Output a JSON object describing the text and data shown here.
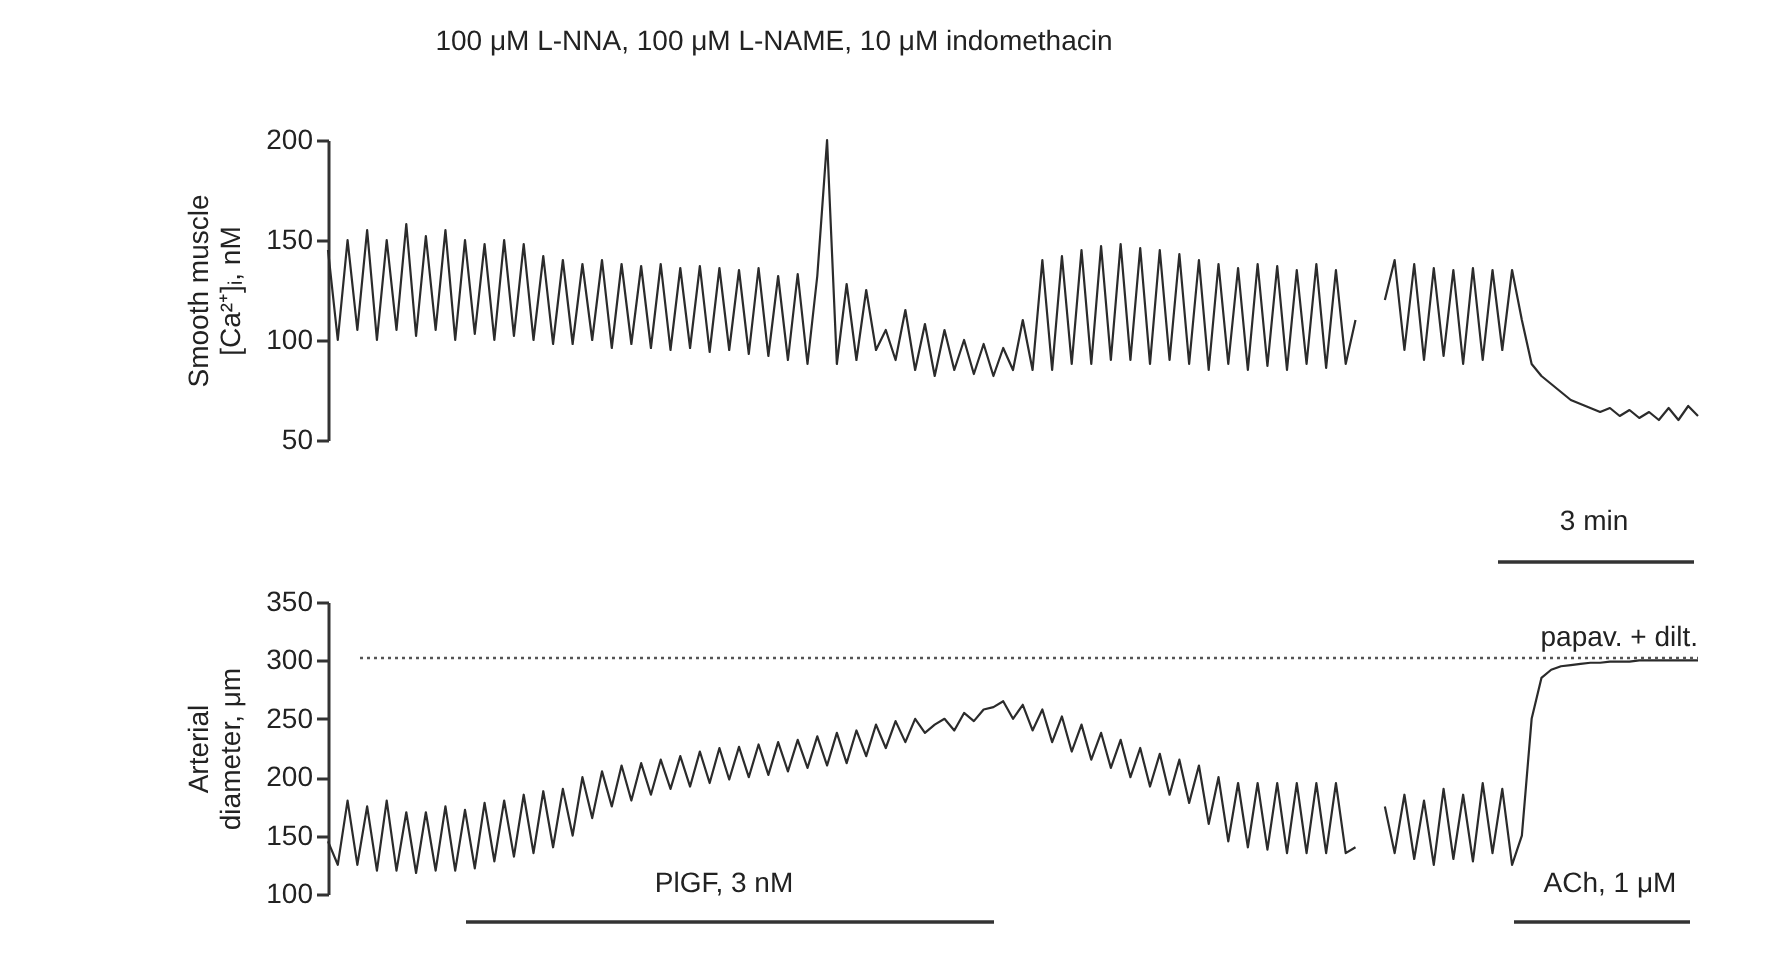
{
  "chart_data": [
    {
      "type": "line",
      "ylabel": "Smooth muscle\n[Ca²⁺]ᵢ, nM",
      "ylim": [
        50,
        200
      ],
      "yticks": [
        50,
        100,
        150,
        200
      ],
      "tick_labels": "y",
      "grid": false,
      "annotations": [
        "100 μM L-NNA, 100 μM L-NAME, 10 μM indomethacin",
        "3 min"
      ],
      "categories": [
        null,
        null,
        null,
        null,
        null,
        null,
        null,
        null,
        null,
        null,
        null,
        null,
        null,
        null,
        null,
        null,
        null,
        null,
        null,
        null,
        null,
        null,
        null,
        null,
        null,
        null,
        null,
        null,
        null,
        null,
        null,
        null,
        null,
        null,
        null,
        null,
        null,
        null,
        null,
        null,
        null,
        null,
        null,
        null,
        null,
        null,
        null,
        null,
        null,
        null,
        null,
        null,
        null,
        null,
        null,
        null,
        null,
        null,
        null,
        null,
        null,
        null,
        null,
        null,
        null,
        null,
        null,
        null,
        null,
        null,
        null,
        null,
        null,
        null,
        null,
        null,
        null,
        null,
        null,
        null,
        null,
        null,
        null,
        null,
        null,
        null,
        null,
        null,
        null,
        null,
        null,
        null,
        null,
        null,
        null,
        null,
        null,
        null,
        null,
        null,
        null,
        null,
        null,
        null,
        null,
        null,
        null,
        null,
        null,
        null,
        null,
        null,
        null,
        null,
        null,
        null,
        null,
        null,
        null,
        null,
        null,
        null,
        null,
        null,
        null,
        null,
        null,
        null,
        null,
        null,
        null,
        null,
        null,
        null,
        null,
        null,
        null,
        null,
        null,
        null,
        null
      ],
      "series": [
        {
          "color": "#2b2b2b",
          "values": [
            145,
            100,
            150,
            105,
            155,
            100,
            150,
            105,
            158,
            102,
            152,
            105,
            155,
            100,
            150,
            103,
            148,
            100,
            150,
            102,
            148,
            100,
            142,
            98,
            140,
            98,
            138,
            100,
            140,
            96,
            138,
            98,
            137,
            96,
            138,
            95,
            136,
            96,
            137,
            94,
            136,
            95,
            135,
            93,
            136,
            92,
            132,
            90,
            133,
            88,
            132,
            200,
            88,
            128,
            90,
            125,
            95,
            105,
            90,
            115,
            85,
            108,
            82,
            105,
            85,
            100,
            83,
            98,
            82,
            96,
            85,
            110,
            85,
            140,
            85,
            142,
            88,
            145,
            88,
            147,
            90,
            148,
            90,
            146,
            88,
            145,
            90,
            143,
            88,
            140,
            85,
            138,
            88,
            136,
            85,
            138,
            87,
            137,
            85,
            135,
            88,
            138,
            86,
            135,
            88,
            110,
            null,
            null,
            null,
            null,
            null,
            null,
            null,
            null,
            null,
            null,
            null,
            null,
            null,
            null,
            null,
            null,
            null,
            null,
            null,
            null,
            null,
            null,
            null,
            null,
            null,
            null,
            null,
            null,
            null,
            null,
            null,
            null,
            null,
            null,
            null
          ]
        },
        {
          "color": "#2b2b2b",
          "values": [
            null,
            null,
            null,
            null,
            null,
            null,
            null,
            null,
            null,
            null,
            null,
            null,
            null,
            null,
            null,
            null,
            null,
            null,
            null,
            null,
            null,
            null,
            null,
            null,
            null,
            null,
            null,
            null,
            null,
            null,
            null,
            null,
            null,
            null,
            null,
            null,
            null,
            null,
            null,
            null,
            null,
            null,
            null,
            null,
            null,
            null,
            null,
            null,
            null,
            null,
            null,
            null,
            null,
            null,
            null,
            null,
            null,
            null,
            null,
            null,
            null,
            null,
            null,
            null,
            null,
            null,
            null,
            null,
            null,
            null,
            null,
            null,
            null,
            null,
            null,
            null,
            null,
            null,
            null,
            null,
            null,
            null,
            null,
            null,
            null,
            null,
            null,
            null,
            null,
            null,
            null,
            null,
            null,
            null,
            null,
            null,
            null,
            null,
            null,
            null,
            null,
            null,
            null,
            null,
            null,
            null,
            null,
            null,
            120,
            140,
            95,
            138,
            90,
            136,
            92,
            135,
            88,
            136,
            90,
            135,
            95,
            135,
            110,
            88,
            82,
            78,
            74,
            70,
            68,
            66,
            64,
            66,
            62,
            65,
            61,
            64,
            60,
            66,
            60,
            67,
            62
          ]
        }
      ]
    },
    {
      "type": "line",
      "ylabel": "Arterial\ndiameter, μm",
      "ylim": [
        100,
        350
      ],
      "yticks": [
        100,
        150,
        200,
        250,
        300,
        350
      ],
      "tick_labels": "y",
      "grid": false,
      "ref_lines": [
        {
          "axis": "y",
          "value": 302,
          "label": "papav. + dilt.",
          "line_style": "dotted",
          "color": "#555555"
        }
      ],
      "annotations": [
        "PlGF, 3 nM",
        "ACh, 1 μM"
      ],
      "categories": [
        null,
        null,
        null,
        null,
        null,
        null,
        null,
        null,
        null,
        null,
        null,
        null,
        null,
        null,
        null,
        null,
        null,
        null,
        null,
        null,
        null,
        null,
        null,
        null,
        null,
        null,
        null,
        null,
        null,
        null,
        null,
        null,
        null,
        null,
        null,
        null,
        null,
        null,
        null,
        null,
        null,
        null,
        null,
        null,
        null,
        null,
        null,
        null,
        null,
        null,
        null,
        null,
        null,
        null,
        null,
        null,
        null,
        null,
        null,
        null,
        null,
        null,
        null,
        null,
        null,
        null,
        null,
        null,
        null,
        null,
        null,
        null,
        null,
        null,
        null,
        null,
        null,
        null,
        null,
        null,
        null,
        null,
        null,
        null,
        null,
        null,
        null,
        null,
        null,
        null,
        null,
        null,
        null,
        null,
        null,
        null,
        null,
        null,
        null,
        null,
        null,
        null,
        null,
        null,
        null,
        null,
        null,
        null,
        null,
        null,
        null,
        null,
        null,
        null,
        null,
        null,
        null,
        null,
        null,
        null,
        null,
        null,
        null,
        null,
        null,
        null,
        null,
        null,
        null,
        null,
        null,
        null,
        null,
        null,
        null,
        null,
        null,
        null,
        null,
        null,
        null
      ],
      "series": [
        {
          "color": "#2b2b2b",
          "values": [
            145,
            125,
            180,
            125,
            175,
            120,
            180,
            120,
            170,
            118,
            170,
            120,
            175,
            120,
            172,
            122,
            178,
            128,
            180,
            132,
            185,
            135,
            188,
            140,
            190,
            150,
            200,
            165,
            205,
            175,
            210,
            180,
            212,
            185,
            215,
            190,
            218,
            192,
            222,
            195,
            225,
            198,
            226,
            200,
            228,
            202,
            230,
            205,
            232,
            208,
            235,
            210,
            238,
            212,
            240,
            218,
            245,
            225,
            248,
            230,
            250,
            238,
            245,
            250,
            240,
            255,
            248,
            258,
            260,
            265,
            250,
            262,
            240,
            258,
            230,
            252,
            222,
            245,
            215,
            238,
            208,
            232,
            200,
            225,
            192,
            220,
            185,
            215,
            178,
            210,
            160,
            200,
            145,
            195,
            140,
            195,
            138,
            195,
            135,
            195,
            135,
            195,
            135,
            195,
            135,
            140,
            null,
            null,
            null,
            null,
            null,
            null,
            null,
            null,
            null,
            null,
            null,
            null,
            null,
            null,
            null,
            null,
            null,
            null,
            null,
            null,
            null,
            null,
            null,
            null,
            null,
            null,
            null,
            null,
            null,
            null,
            null,
            null,
            null,
            null,
            null
          ]
        },
        {
          "color": "#2b2b2b",
          "values": [
            null,
            null,
            null,
            null,
            null,
            null,
            null,
            null,
            null,
            null,
            null,
            null,
            null,
            null,
            null,
            null,
            null,
            null,
            null,
            null,
            null,
            null,
            null,
            null,
            null,
            null,
            null,
            null,
            null,
            null,
            null,
            null,
            null,
            null,
            null,
            null,
            null,
            null,
            null,
            null,
            null,
            null,
            null,
            null,
            null,
            null,
            null,
            null,
            null,
            null,
            null,
            null,
            null,
            null,
            null,
            null,
            null,
            null,
            null,
            null,
            null,
            null,
            null,
            null,
            null,
            null,
            null,
            null,
            null,
            null,
            null,
            null,
            null,
            null,
            null,
            null,
            null,
            null,
            null,
            null,
            null,
            null,
            null,
            null,
            null,
            null,
            null,
            null,
            null,
            null,
            null,
            null,
            null,
            null,
            null,
            null,
            null,
            null,
            null,
            null,
            null,
            null,
            null,
            null,
            null,
            null,
            null,
            null,
            175,
            135,
            185,
            130,
            180,
            125,
            190,
            130,
            185,
            128,
            195,
            135,
            190,
            125,
            150,
            250,
            285,
            292,
            295,
            296,
            297,
            298,
            298,
            299,
            299,
            299,
            300,
            300,
            300,
            300,
            300,
            300,
            300
          ]
        }
      ]
    }
  ]
}
